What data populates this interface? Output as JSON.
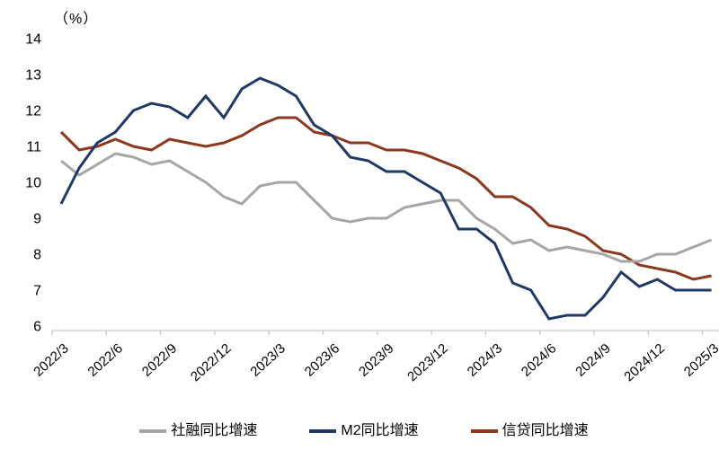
{
  "unit_label": "（%）",
  "chart_data": {
    "type": "line",
    "title": "",
    "ylabel": "（%）",
    "xlabel": "",
    "ylim": [
      6,
      14
    ],
    "y_ticks": [
      14,
      13,
      12,
      11,
      10,
      9,
      8,
      7,
      6
    ],
    "grid": "off",
    "legend_position": "bottom",
    "x_tick_labels": [
      "2022/3",
      "2022/6",
      "2022/9",
      "2022/12",
      "2023/3",
      "2023/6",
      "2023/9",
      "2023/12",
      "2024/3",
      "2024/6",
      "2024/9",
      "2024/12",
      "2025/3"
    ],
    "x_monthly": [
      "2022/3",
      "2022/4",
      "2022/5",
      "2022/6",
      "2022/7",
      "2022/8",
      "2022/9",
      "2022/10",
      "2022/11",
      "2022/12",
      "2023/1",
      "2023/2",
      "2023/3",
      "2023/4",
      "2023/5",
      "2023/6",
      "2023/7",
      "2023/8",
      "2023/9",
      "2023/10",
      "2023/11",
      "2023/12",
      "2024/1",
      "2024/2",
      "2024/3",
      "2024/4",
      "2024/5",
      "2024/6",
      "2024/7",
      "2024/8",
      "2024/9",
      "2024/10",
      "2024/11",
      "2024/12",
      "2025/1",
      "2025/2",
      "2025/3"
    ],
    "series": [
      {
        "name": "社融同比增速",
        "color": "#a6a6a6",
        "values": [
          10.6,
          10.2,
          10.5,
          10.8,
          10.7,
          10.5,
          10.6,
          10.3,
          10.0,
          9.6,
          9.4,
          9.9,
          10.0,
          10.0,
          9.5,
          9.0,
          8.9,
          9.0,
          9.0,
          9.3,
          9.4,
          9.5,
          9.5,
          9.0,
          8.7,
          8.3,
          8.4,
          8.1,
          8.2,
          8.1,
          8.0,
          7.8,
          7.8,
          8.0,
          8.0,
          8.2,
          8.4
        ]
      },
      {
        "name": "M2同比增速",
        "color": "#1f3864",
        "values": [
          9.4,
          10.4,
          11.1,
          11.4,
          12.0,
          12.2,
          12.1,
          11.8,
          12.4,
          11.8,
          12.6,
          12.9,
          12.7,
          12.4,
          11.6,
          11.3,
          10.7,
          10.6,
          10.3,
          10.3,
          10.0,
          9.7,
          8.7,
          8.7,
          8.3,
          7.2,
          7.0,
          6.2,
          6.3,
          6.3,
          6.8,
          7.5,
          7.1,
          7.3,
          7.0,
          7.0,
          7.0
        ]
      },
      {
        "name": "信贷同比增速",
        "color": "#8c381e",
        "values": [
          11.4,
          10.9,
          11.0,
          11.2,
          11.0,
          10.9,
          11.2,
          11.1,
          11.0,
          11.1,
          11.3,
          11.6,
          11.8,
          11.8,
          11.4,
          11.3,
          11.1,
          11.1,
          10.9,
          10.9,
          10.8,
          10.6,
          10.4,
          10.1,
          9.6,
          9.6,
          9.3,
          8.8,
          8.7,
          8.5,
          8.1,
          8.0,
          7.7,
          7.6,
          7.5,
          7.3,
          7.4
        ]
      }
    ],
    "axis_color": "#c6c6c6",
    "text_color": "#000000"
  }
}
